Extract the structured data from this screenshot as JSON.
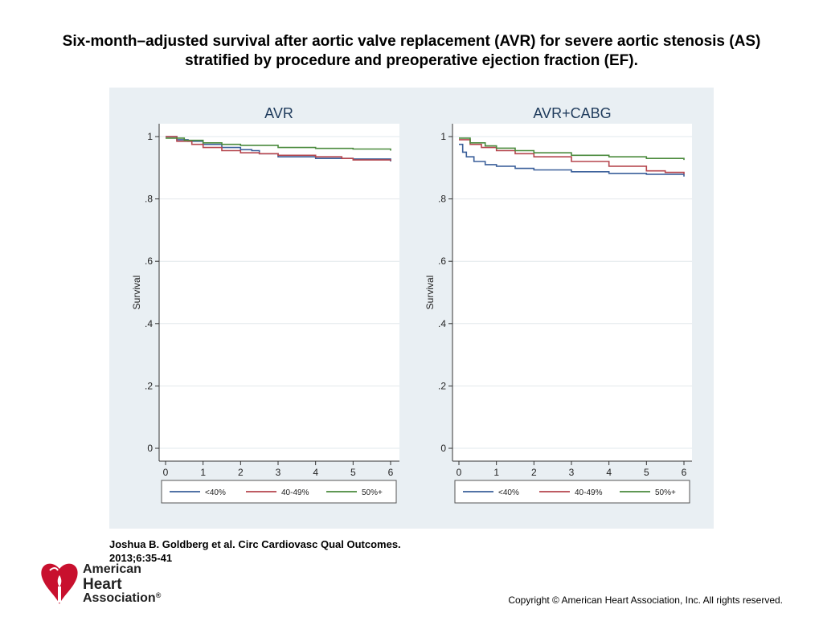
{
  "title": {
    "line1": "Six-month–adjusted survival after aortic valve replacement (AVR) for severe aortic stenosis (AS)",
    "line2": "stratified by procedure and preoperative ejection fraction (EF)."
  },
  "citation": {
    "line1": "Joshua B. Goldberg et al. Circ Cardiovasc Qual Outcomes.",
    "line2": "2013;6:35-41"
  },
  "copyright": "Copyright © American Heart Association, Inc. All rights reserved.",
  "logo": {
    "line1": "American",
    "line2": "Heart",
    "line3": "Association",
    "mark": "®",
    "icon": "heart-torch-icon"
  },
  "colors": {
    "figure_background": "#e9eff3",
    "ef_below_40": "#3a5f9a",
    "ef_40_49": "#b5454d",
    "ef_50_plus": "#4a8a3c",
    "aha_red": "#c8102e"
  },
  "chart_data": [
    {
      "type": "line",
      "title": "AVR",
      "xlabel": "",
      "ylabel": "Survival",
      "xlim": [
        0,
        6
      ],
      "ylim": [
        0,
        1
      ],
      "x_ticks": [
        "0",
        "1",
        "2",
        "3",
        "4",
        "5",
        "6"
      ],
      "y_ticks": [
        "0",
        ".2",
        ".4",
        ".6",
        ".8",
        "1"
      ],
      "grid": true,
      "legend_position": "bottom",
      "series": [
        {
          "name": "<40%",
          "color": "#3a5f9a",
          "points": [
            [
              0,
              1.0
            ],
            [
              0.3,
              0.99
            ],
            [
              0.6,
              0.985
            ],
            [
              1.0,
              0.975
            ],
            [
              1.5,
              0.965
            ],
            [
              2.0,
              0.958
            ],
            [
              2.3,
              0.955
            ],
            [
              2.5,
              0.945
            ],
            [
              3.0,
              0.935
            ],
            [
              4.0,
              0.93
            ],
            [
              5.0,
              0.928
            ],
            [
              6.0,
              0.92
            ]
          ]
        },
        {
          "name": "40-49%",
          "color": "#b5454d",
          "points": [
            [
              0,
              1.0
            ],
            [
              0.3,
              0.985
            ],
            [
              0.7,
              0.975
            ],
            [
              1.0,
              0.965
            ],
            [
              1.5,
              0.955
            ],
            [
              2.0,
              0.948
            ],
            [
              2.5,
              0.945
            ],
            [
              3.0,
              0.94
            ],
            [
              4.0,
              0.935
            ],
            [
              4.7,
              0.93
            ],
            [
              5.0,
              0.925
            ],
            [
              6.0,
              0.922
            ]
          ]
        },
        {
          "name": "50%+",
          "color": "#4a8a3c",
          "points": [
            [
              0,
              0.995
            ],
            [
              0.5,
              0.988
            ],
            [
              1.0,
              0.98
            ],
            [
              1.5,
              0.975
            ],
            [
              2.0,
              0.972
            ],
            [
              3.0,
              0.965
            ],
            [
              4.0,
              0.962
            ],
            [
              5.0,
              0.96
            ],
            [
              6.0,
              0.955
            ]
          ]
        }
      ]
    },
    {
      "type": "line",
      "title": "AVR+CABG",
      "xlabel": "",
      "ylabel": "Survival",
      "xlim": [
        0,
        6
      ],
      "ylim": [
        0,
        1
      ],
      "x_ticks": [
        "0",
        "1",
        "2",
        "3",
        "4",
        "5",
        "6"
      ],
      "y_ticks": [
        "0",
        ".2",
        ".4",
        ".6",
        ".8",
        "1"
      ],
      "grid": true,
      "legend_position": "bottom",
      "series": [
        {
          "name": "<40%",
          "color": "#3a5f9a",
          "points": [
            [
              0,
              0.975
            ],
            [
              0.1,
              0.95
            ],
            [
              0.2,
              0.935
            ],
            [
              0.4,
              0.92
            ],
            [
              0.7,
              0.91
            ],
            [
              1.0,
              0.905
            ],
            [
              1.5,
              0.898
            ],
            [
              2.0,
              0.893
            ],
            [
              3.0,
              0.887
            ],
            [
              4.0,
              0.882
            ],
            [
              5.0,
              0.879
            ],
            [
              6.0,
              0.872
            ]
          ]
        },
        {
          "name": "40-49%",
          "color": "#b5454d",
          "points": [
            [
              0,
              0.99
            ],
            [
              0.3,
              0.975
            ],
            [
              0.6,
              0.965
            ],
            [
              1.0,
              0.955
            ],
            [
              1.5,
              0.945
            ],
            [
              2.0,
              0.935
            ],
            [
              3.0,
              0.92
            ],
            [
              4.0,
              0.905
            ],
            [
              5.0,
              0.89
            ],
            [
              5.5,
              0.885
            ],
            [
              6.0,
              0.88
            ]
          ]
        },
        {
          "name": "50%+",
          "color": "#4a8a3c",
          "points": [
            [
              0,
              0.995
            ],
            [
              0.3,
              0.98
            ],
            [
              0.7,
              0.97
            ],
            [
              1.0,
              0.963
            ],
            [
              1.5,
              0.955
            ],
            [
              2.0,
              0.948
            ],
            [
              3.0,
              0.94
            ],
            [
              4.0,
              0.935
            ],
            [
              5.0,
              0.93
            ],
            [
              6.0,
              0.925
            ]
          ]
        }
      ]
    }
  ]
}
